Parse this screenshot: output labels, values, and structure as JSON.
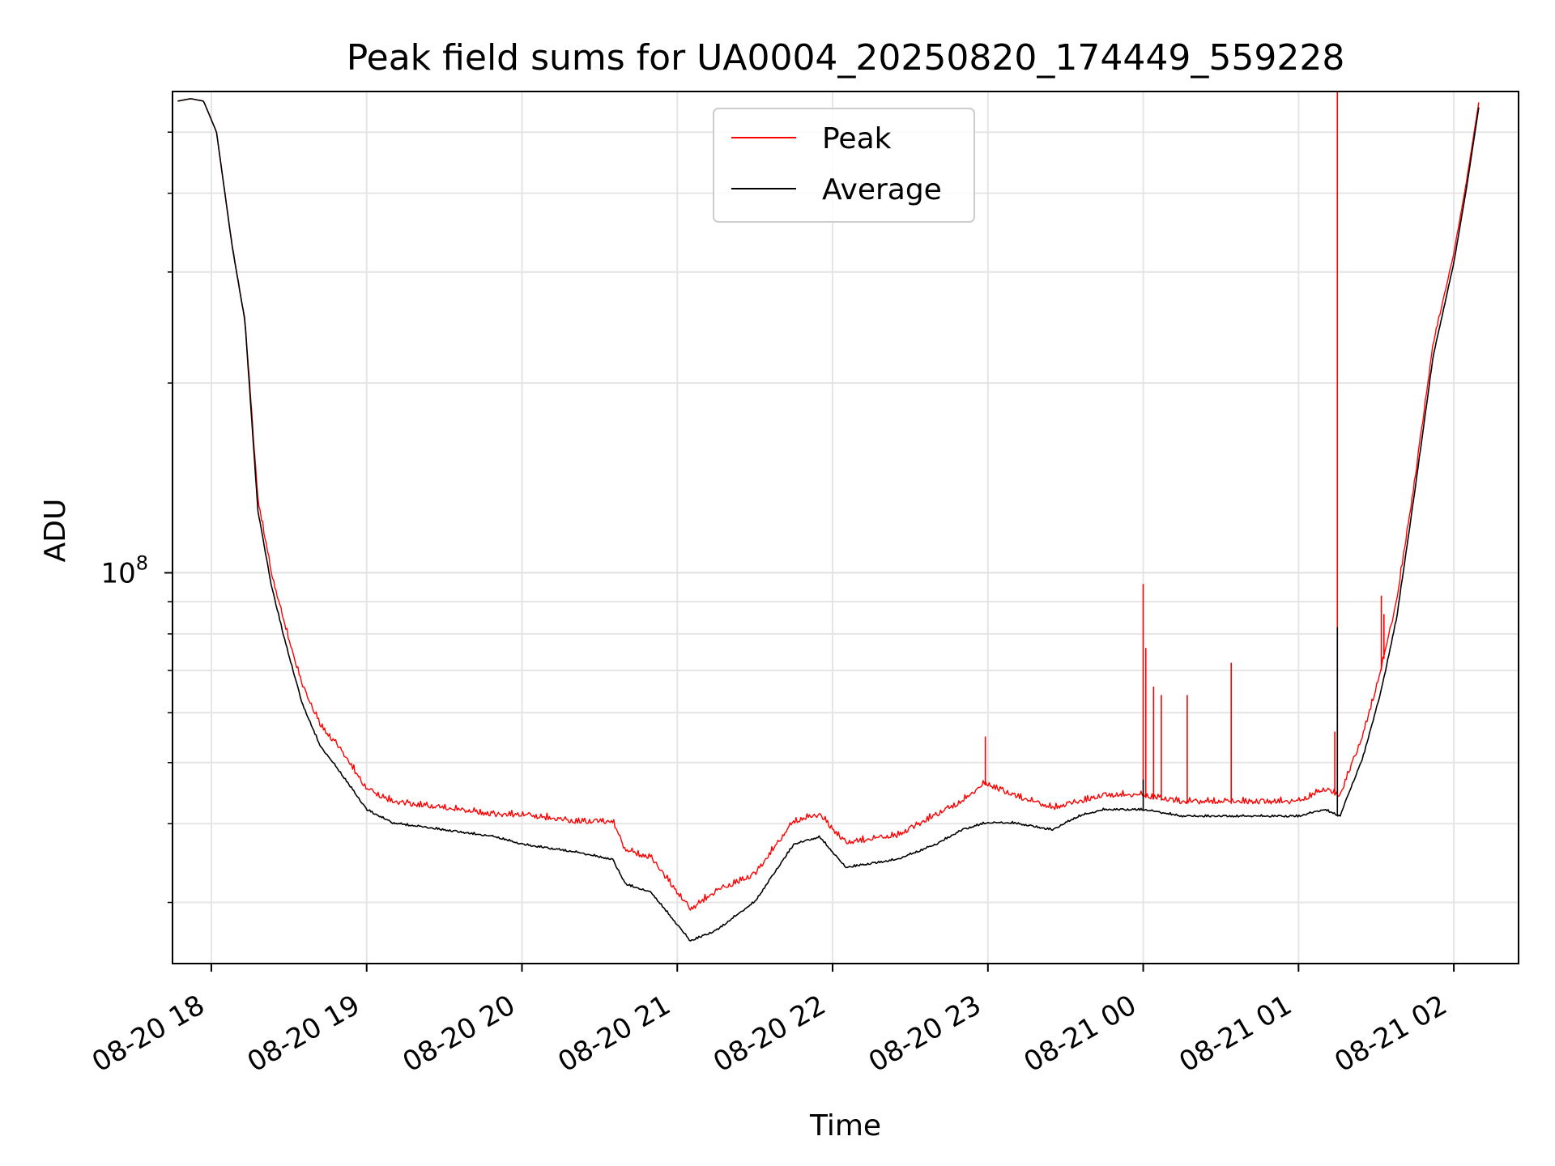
{
  "chart_data": {
    "type": "line",
    "title": "Peak field sums for UA0004_20250820_174449_559228",
    "xlabel": "Time",
    "ylabel": "ADU",
    "yscale": "log",
    "ylim": [
      24000000,
      580000000
    ],
    "xlim": [
      "2025-08-20 17:45",
      "2025-08-21 02:25"
    ],
    "grid": true,
    "legend_placement": "upper center",
    "x_ticks": [
      {
        "t": "2025-08-20 18:00",
        "label": "08-20 18"
      },
      {
        "t": "2025-08-20 19:00",
        "label": "08-20 19"
      },
      {
        "t": "2025-08-20 20:00",
        "label": "08-20 20"
      },
      {
        "t": "2025-08-20 21:00",
        "label": "08-20 21"
      },
      {
        "t": "2025-08-20 22:00",
        "label": "08-20 22"
      },
      {
        "t": "2025-08-20 23:00",
        "label": "08-20 23"
      },
      {
        "t": "2025-08-21 00:00",
        "label": "08-21 00"
      },
      {
        "t": "2025-08-21 01:00",
        "label": "08-21 01"
      },
      {
        "t": "2025-08-21 02:00",
        "label": "08-21 02"
      }
    ],
    "y_major_ticks": [
      {
        "value": 100000000,
        "label_base": "10",
        "label_exp": "8"
      }
    ],
    "y_minor_ticks": [
      30000000,
      40000000,
      50000000,
      60000000,
      70000000,
      80000000,
      90000000,
      200000000,
      300000000,
      400000000,
      500000000
    ],
    "series": [
      {
        "name": "Peak",
        "color": "#ff0000",
        "x": [
          "2025-08-20 17:47",
          "2025-08-20 17:52",
          "2025-08-20 17:57",
          "2025-08-20 18:02",
          "2025-08-20 18:08",
          "2025-08-20 18:13",
          "2025-08-20 18:18",
          "2025-08-20 18:23",
          "2025-08-20 18:28",
          "2025-08-20 18:35",
          "2025-08-20 18:42",
          "2025-08-20 18:50",
          "2025-08-20 19:00",
          "2025-08-20 19:10",
          "2025-08-20 19:30",
          "2025-08-20 19:50",
          "2025-08-20 20:00",
          "2025-08-20 20:20",
          "2025-08-20 20:35",
          "2025-08-20 20:40",
          "2025-08-20 20:50",
          "2025-08-20 21:05",
          "2025-08-20 21:15",
          "2025-08-20 21:30",
          "2025-08-20 21:45",
          "2025-08-20 21:55",
          "2025-08-20 22:05",
          "2025-08-20 22:25",
          "2025-08-20 22:40",
          "2025-08-20 22:50",
          "2025-08-20 22:59",
          "2025-08-20 23:10",
          "2025-08-20 23:25",
          "2025-08-20 23:35",
          "2025-08-20 23:45",
          "2025-08-21 00:00",
          "2025-08-21 00:15",
          "2025-08-21 00:30",
          "2025-08-21 00:45",
          "2025-08-21 01:00",
          "2025-08-21 01:10",
          "2025-08-21 01:16",
          "2025-08-21 01:25",
          "2025-08-21 01:32",
          "2025-08-21 01:38",
          "2025-08-21 01:45",
          "2025-08-21 01:52",
          "2025-08-21 02:00",
          "2025-08-21 02:05",
          "2025-08-21 02:10"
        ],
        "y": [
          560000000,
          565000000,
          560000000,
          500000000,
          330000000,
          250000000,
          130000000,
          100000000,
          83000000,
          66000000,
          57000000,
          52000000,
          45000000,
          43000000,
          42000000,
          41000000,
          41000000,
          40000000,
          40000000,
          36000000,
          35000000,
          29000000,
          31000000,
          33000000,
          40000000,
          41000000,
          37000000,
          38000000,
          41000000,
          43000000,
          46000000,
          44000000,
          42000000,
          43000000,
          44000000,
          44000000,
          43000000,
          43000000,
          43000000,
          43000000,
          45000000,
          44000000,
          55000000,
          70000000,
          90000000,
          140000000,
          230000000,
          320000000,
          420000000,
          570000000
        ],
        "spikes": [
          {
            "t": "2025-08-20 22:59",
            "value": 55000000
          },
          {
            "t": "2025-08-21 00:00",
            "value": 96000000
          },
          {
            "t": "2025-08-21 00:01",
            "value": 76000000
          },
          {
            "t": "2025-08-21 00:04",
            "value": 66000000
          },
          {
            "t": "2025-08-21 00:07",
            "value": 64000000
          },
          {
            "t": "2025-08-21 00:17",
            "value": 64000000
          },
          {
            "t": "2025-08-21 00:34",
            "value": 72000000
          },
          {
            "t": "2025-08-21 01:14",
            "value": 56000000
          },
          {
            "t": "2025-08-21 01:15",
            "value": 580000000
          },
          {
            "t": "2025-08-21 01:32",
            "value": 92000000
          },
          {
            "t": "2025-08-21 01:33",
            "value": 86000000
          }
        ]
      },
      {
        "name": "Average",
        "color": "#000000",
        "x": [
          "2025-08-20 17:47",
          "2025-08-20 17:52",
          "2025-08-20 17:57",
          "2025-08-20 18:02",
          "2025-08-20 18:08",
          "2025-08-20 18:13",
          "2025-08-20 18:18",
          "2025-08-20 18:23",
          "2025-08-20 18:28",
          "2025-08-20 18:35",
          "2025-08-20 18:42",
          "2025-08-20 18:50",
          "2025-08-20 19:00",
          "2025-08-20 19:10",
          "2025-08-20 19:30",
          "2025-08-20 19:50",
          "2025-08-20 20:00",
          "2025-08-20 20:20",
          "2025-08-20 20:35",
          "2025-08-20 20:40",
          "2025-08-20 20:50",
          "2025-08-20 21:05",
          "2025-08-20 21:15",
          "2025-08-20 21:30",
          "2025-08-20 21:45",
          "2025-08-20 21:55",
          "2025-08-20 22:05",
          "2025-08-20 22:25",
          "2025-08-20 22:40",
          "2025-08-20 22:50",
          "2025-08-20 22:59",
          "2025-08-20 23:10",
          "2025-08-20 23:25",
          "2025-08-20 23:35",
          "2025-08-20 23:45",
          "2025-08-21 00:00",
          "2025-08-21 00:15",
          "2025-08-21 00:30",
          "2025-08-21 00:45",
          "2025-08-21 01:00",
          "2025-08-21 01:10",
          "2025-08-21 01:16",
          "2025-08-21 01:25",
          "2025-08-21 01:32",
          "2025-08-21 01:38",
          "2025-08-21 01:45",
          "2025-08-21 01:52",
          "2025-08-21 02:00",
          "2025-08-21 02:05",
          "2025-08-21 02:10"
        ],
        "y": [
          560000000,
          565000000,
          560000000,
          500000000,
          330000000,
          250000000,
          125000000,
          96000000,
          79000000,
          62000000,
          53000000,
          48000000,
          42000000,
          40000000,
          39000000,
          38000000,
          37000000,
          36000000,
          35000000,
          32000000,
          31000000,
          26000000,
          27000000,
          30000000,
          37000000,
          38000000,
          34000000,
          35000000,
          37000000,
          39000000,
          40000000,
          40000000,
          39000000,
          41000000,
          42000000,
          42000000,
          41000000,
          41000000,
          41000000,
          41000000,
          42000000,
          41000000,
          51000000,
          65000000,
          85000000,
          135000000,
          220000000,
          310000000,
          410000000,
          560000000
        ],
        "spikes": [
          {
            "t": "2025-08-21 00:00",
            "value": 47000000
          },
          {
            "t": "2025-08-21 01:15",
            "value": 82000000
          }
        ]
      }
    ]
  }
}
